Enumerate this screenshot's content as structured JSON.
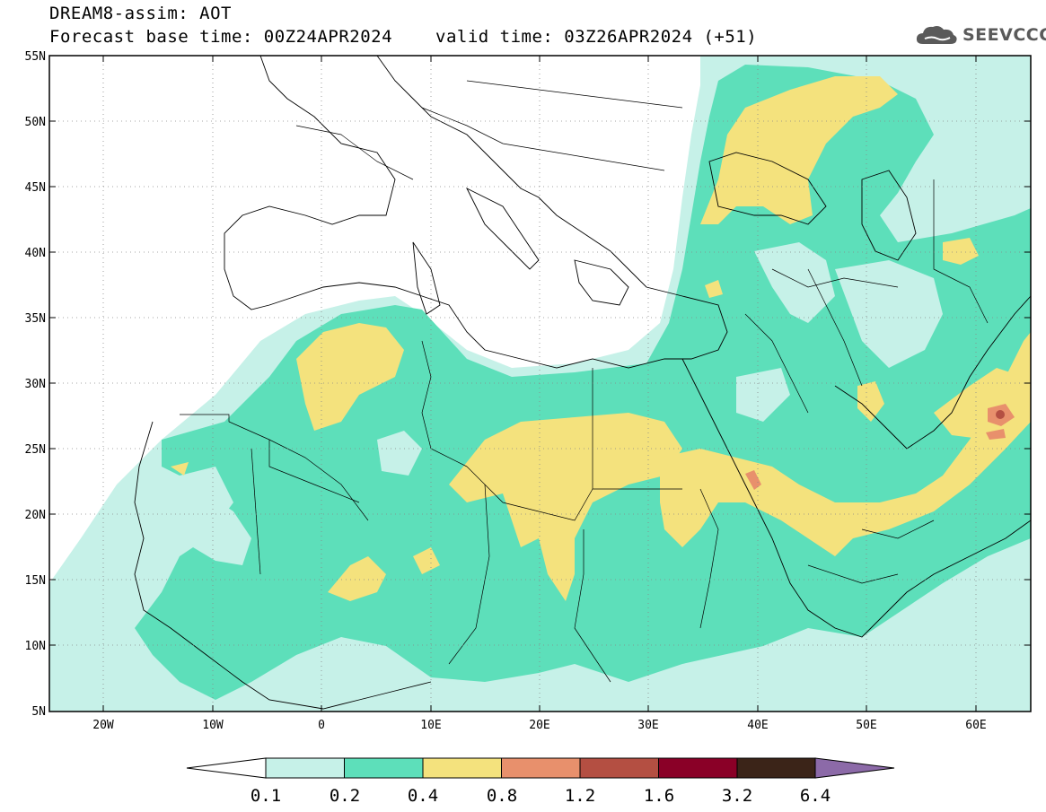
{
  "title": {
    "line1": "DREAM8-assim: AOT",
    "base": "Forecast base time: 00Z24APR2024",
    "valid": "valid time: 03Z26APR2024 (+51)"
  },
  "logo": {
    "text": "SEEVCCC",
    "icon": "cloud-icon"
  },
  "map": {
    "lon_range": [
      -25,
      65
    ],
    "lat_range": [
      5,
      55
    ],
    "lat_ticks": [
      "55N",
      "50N",
      "45N",
      "40N",
      "35N",
      "30N",
      "25N",
      "20N",
      "15N",
      "10N",
      "5N"
    ],
    "lon_ticks": [
      "20W",
      "10W",
      "0",
      "10E",
      "20E",
      "30E",
      "40E",
      "50E",
      "60E"
    ]
  },
  "colorbar": {
    "levels": [
      "0.1",
      "0.2",
      "0.4",
      "0.8",
      "1.2",
      "1.6",
      "3.2",
      "6.4"
    ],
    "colors": [
      "#c6f1e8",
      "#5ddfba",
      "#f4e27d",
      "#e8906c",
      "#b44f42",
      "#8a0027",
      "#3b2418",
      "#8c6aa8"
    ]
  },
  "colors": {
    "c01": "#c6f1e8",
    "c02": "#5ddfba",
    "c04": "#f4e27d",
    "c08": "#e8906c",
    "c12": "#b44f42"
  }
}
